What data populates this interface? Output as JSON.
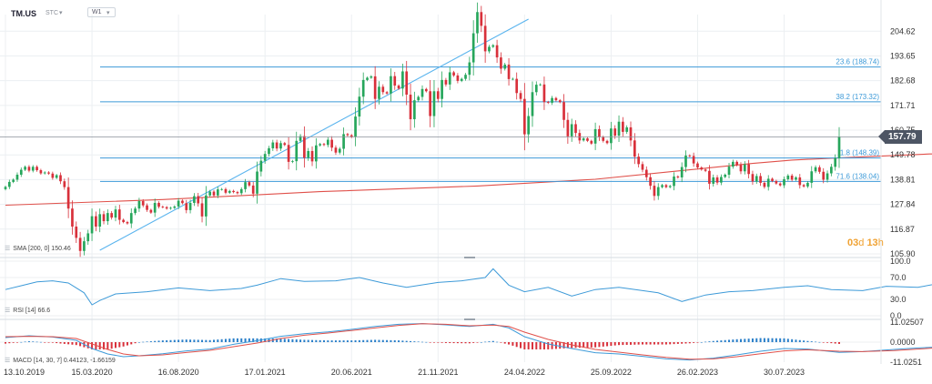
{
  "header": {
    "symbol": "TM.US",
    "market_tag": "STC",
    "timeframe": "W1"
  },
  "countdown": {
    "days": "03",
    "days_unit": "d",
    "hours": "13",
    "hours_unit": "h"
  },
  "indicators": {
    "sma_label": "SMA [200, 0] 150.46",
    "rsi_label": "RSI [14] 66.6",
    "macd_label": "MACD [14, 30, 7] 0.44123, -1.66159"
  },
  "colors": {
    "up": "#26a65b",
    "down": "#d8303a",
    "sma": "#e0504a",
    "fib": "#3d9ad8",
    "trend": "#5ab4ee",
    "rsi": "#3d9ad8",
    "macd": "#3d9ad8",
    "signal": "#e0504a",
    "grid": "#eceff2",
    "axis_text": "#333333",
    "price_tag": "#4d5564"
  },
  "chart_data": {
    "type": "candlestick",
    "symbol": "TM.US",
    "interval": "W1",
    "ylim": [
      105.9,
      212.0
    ],
    "y_ticks": [
      204.62,
      193.65,
      182.68,
      171.71,
      160.75,
      149.78,
      138.81,
      127.84,
      116.87,
      105.9
    ],
    "x_ticks": [
      "13.10.2019",
      "15.03.2020",
      "16.08.2020",
      "17.01.2021",
      "20.06.2021",
      "21.11.2021",
      "24.04.2022",
      "25.09.2022",
      "26.02.2023",
      "30.07.2023"
    ],
    "last_price": 157.79,
    "last_price_label": "157.79",
    "fib_levels": [
      {
        "label": "23.6 (188.74)",
        "value": 188.74
      },
      {
        "label": "38.2 (173.32)",
        "value": 173.32
      },
      {
        "label": "1.8 (148.39)",
        "value": 148.39
      },
      {
        "label": "71.6 (138.04)",
        "value": 138.04
      }
    ],
    "sma": {
      "name": "SMA [200, 0]",
      "last": 150.46,
      "points": [
        [
          0,
          127.5
        ],
        [
          40,
          130
        ],
        [
          80,
          133.5
        ],
        [
          120,
          136
        ],
        [
          150,
          139
        ],
        [
          170,
          142.5
        ],
        [
          190,
          146
        ],
        [
          200,
          147.5
        ],
        [
          215,
          148.7
        ],
        [
          235,
          150.2
        ],
        [
          251,
          150.46
        ]
      ]
    },
    "trendline": {
      "from": [
        24,
        107.5
      ],
      "to": [
        133,
        210
      ]
    },
    "closes": [
      135.6,
      137.8,
      138.8,
      141,
      143.2,
      144.5,
      142.8,
      144.5,
      143,
      141.6,
      142,
      141.5,
      139.6,
      140.8,
      138.1,
      135.5,
      126,
      118,
      113,
      107.2,
      111.5,
      115,
      122.6,
      118,
      123.5,
      120.4,
      124,
      122,
      125.6,
      121,
      120,
      119.4,
      124,
      126,
      129.3,
      127.4,
      125.4,
      124.2,
      128.5,
      126.8,
      126.6,
      126,
      126.3,
      126.9,
      129.5,
      128.4,
      125.3,
      128.5,
      131.5,
      128.3,
      122.5,
      131.8,
      133.5,
      131.8,
      134.5,
      134.6,
      133,
      133.8,
      133.3,
      132.8,
      134.6,
      137.7,
      136.2,
      132.6,
      142.4,
      147.2,
      150.2,
      152.7,
      155.3,
      152.6,
      155,
      154.2,
      146.7,
      147,
      156,
      158.1,
      148.5,
      151.5,
      146.9,
      154,
      154.6,
      154.2,
      156.5,
      153,
      150.8,
      152.5,
      159,
      158.5,
      157.7,
      166.8,
      175.6,
      183,
      184,
      184.6,
      174.6,
      180,
      177.6,
      177,
      184.7,
      180.5,
      179.2,
      186.8,
      176.5,
      165.6,
      174,
      175.5,
      179,
      178,
      167,
      178,
      174.6,
      183,
      181,
      186.4,
      185,
      182.6,
      183.5,
      185.3,
      190.8,
      203.7,
      213.1,
      207,
      195.7,
      197.7,
      198.4,
      193,
      188,
      189.8,
      183.4,
      183.5,
      177.2,
      174.6,
      158.9,
      167,
      177.6,
      180.9,
      181,
      173.2,
      172.9,
      175,
      174,
      173.2,
      165.3,
      158,
      163.4,
      159.5,
      156.2,
      157.1,
      156,
      154.8,
      161.2,
      157.6,
      156,
      155,
      161.5,
      158.3,
      164.5,
      160,
      162,
      156.2,
      149,
      145.7,
      143.2,
      139.9,
      136.1,
      131.6,
      135.5,
      136.4,
      135.5,
      136,
      140.2,
      139.8,
      144.4,
      149.5,
      149.3,
      146,
      144.2,
      143.3,
      142.7,
      137,
      139.8,
      137.5,
      140,
      141,
      144.6,
      146.7,
      145.3,
      142.5,
      145.6,
      141.3,
      138,
      140.4,
      137.4,
      135.6,
      139.2,
      138.2,
      137.1,
      136.3,
      139,
      140.6,
      138.8,
      139.8,
      136.4,
      135.8,
      137.4,
      142.5,
      144.3,
      142.3,
      138.8,
      141.6,
      144.5,
      148.3,
      157.8
    ],
    "rsi": {
      "name": "RSI [14]",
      "last": 66.6,
      "ylim": [
        0,
        100
      ],
      "ticks": [
        100.0,
        70.0,
        30.0,
        0.0
      ],
      "points": [
        [
          0,
          48
        ],
        [
          4,
          55
        ],
        [
          8,
          62
        ],
        [
          12,
          64
        ],
        [
          16,
          60
        ],
        [
          20,
          42
        ],
        [
          22,
          20
        ],
        [
          24,
          28
        ],
        [
          28,
          40
        ],
        [
          36,
          44
        ],
        [
          44,
          51
        ],
        [
          52,
          46
        ],
        [
          60,
          50
        ],
        [
          64,
          56
        ],
        [
          70,
          68
        ],
        [
          76,
          63
        ],
        [
          84,
          64
        ],
        [
          90,
          70
        ],
        [
          96,
          60
        ],
        [
          102,
          52
        ],
        [
          110,
          61
        ],
        [
          116,
          64
        ],
        [
          122,
          70
        ],
        [
          124,
          86
        ],
        [
          128,
          56
        ],
        [
          132,
          44
        ],
        [
          138,
          52
        ],
        [
          144,
          36
        ],
        [
          150,
          48
        ],
        [
          156,
          52
        ],
        [
          166,
          42
        ],
        [
          172,
          26
        ],
        [
          178,
          38
        ],
        [
          184,
          44
        ],
        [
          190,
          46
        ],
        [
          198,
          52
        ],
        [
          204,
          55
        ],
        [
          210,
          48
        ],
        [
          218,
          46
        ],
        [
          224,
          54
        ],
        [
          232,
          52
        ],
        [
          238,
          60
        ],
        [
          244,
          58
        ],
        [
          251,
          66.6
        ]
      ]
    },
    "macd": {
      "name": "MACD [14, 30, 7]",
      "macd_last": 0.44123,
      "signal_last": -1.66159,
      "ylim": [
        -11.0251,
        11.02507
      ],
      "ticks": [
        11.02507,
        0.0,
        -11.0251
      ],
      "macd_points": [
        [
          0,
          2.5
        ],
        [
          6,
          3.5
        ],
        [
          12,
          2.8
        ],
        [
          18,
          1
        ],
        [
          22,
          -3.5
        ],
        [
          26,
          -6.5
        ],
        [
          30,
          -8
        ],
        [
          34,
          -7.5
        ],
        [
          40,
          -6.4
        ],
        [
          46,
          -4.8
        ],
        [
          52,
          -3.8
        ],
        [
          58,
          -1.2
        ],
        [
          64,
          0.8
        ],
        [
          70,
          3.2
        ],
        [
          76,
          4.6
        ],
        [
          82,
          5.6
        ],
        [
          88,
          7
        ],
        [
          94,
          8.6
        ],
        [
          100,
          9.8
        ],
        [
          106,
          10.2
        ],
        [
          112,
          9.5
        ],
        [
          118,
          8.6
        ],
        [
          124,
          9.8
        ],
        [
          128,
          7.8
        ],
        [
          132,
          3
        ],
        [
          138,
          -1
        ],
        [
          144,
          -3.5
        ],
        [
          150,
          -5.8
        ],
        [
          156,
          -6.5
        ],
        [
          162,
          -7.8
        ],
        [
          168,
          -9.2
        ],
        [
          174,
          -9.8
        ],
        [
          180,
          -8.8
        ],
        [
          186,
          -7
        ],
        [
          192,
          -5
        ],
        [
          198,
          -3.5
        ],
        [
          204,
          -3.8
        ],
        [
          212,
          -5.6
        ],
        [
          218,
          -5.2
        ],
        [
          226,
          -4
        ],
        [
          232,
          -3.2
        ],
        [
          238,
          -2.6
        ],
        [
          244,
          -2
        ],
        [
          251,
          0.44
        ]
      ],
      "signal_points": [
        [
          0,
          3
        ],
        [
          6,
          3.2
        ],
        [
          12,
          3
        ],
        [
          18,
          2
        ],
        [
          22,
          -1
        ],
        [
          26,
          -4
        ],
        [
          30,
          -6.5
        ],
        [
          34,
          -7.5
        ],
        [
          40,
          -7
        ],
        [
          46,
          -5.7
        ],
        [
          52,
          -4.5
        ],
        [
          58,
          -2.5
        ],
        [
          64,
          -0.5
        ],
        [
          70,
          2
        ],
        [
          76,
          3.8
        ],
        [
          82,
          5
        ],
        [
          88,
          6.4
        ],
        [
          94,
          7.8
        ],
        [
          100,
          9.2
        ],
        [
          106,
          10.1
        ],
        [
          112,
          9.8
        ],
        [
          118,
          9
        ],
        [
          124,
          9.4
        ],
        [
          128,
          8.6
        ],
        [
          132,
          5.5
        ],
        [
          138,
          1.5
        ],
        [
          144,
          -1.5
        ],
        [
          150,
          -4
        ],
        [
          156,
          -5.5
        ],
        [
          162,
          -7
        ],
        [
          168,
          -8.4
        ],
        [
          174,
          -9.4
        ],
        [
          180,
          -9.2
        ],
        [
          186,
          -8
        ],
        [
          192,
          -6.4
        ],
        [
          198,
          -4.8
        ],
        [
          204,
          -4.2
        ],
        [
          212,
          -5
        ],
        [
          218,
          -5.2
        ],
        [
          226,
          -4.6
        ],
        [
          232,
          -3.8
        ],
        [
          238,
          -3
        ],
        [
          244,
          -2.5
        ],
        [
          251,
          -1.66
        ]
      ]
    }
  }
}
